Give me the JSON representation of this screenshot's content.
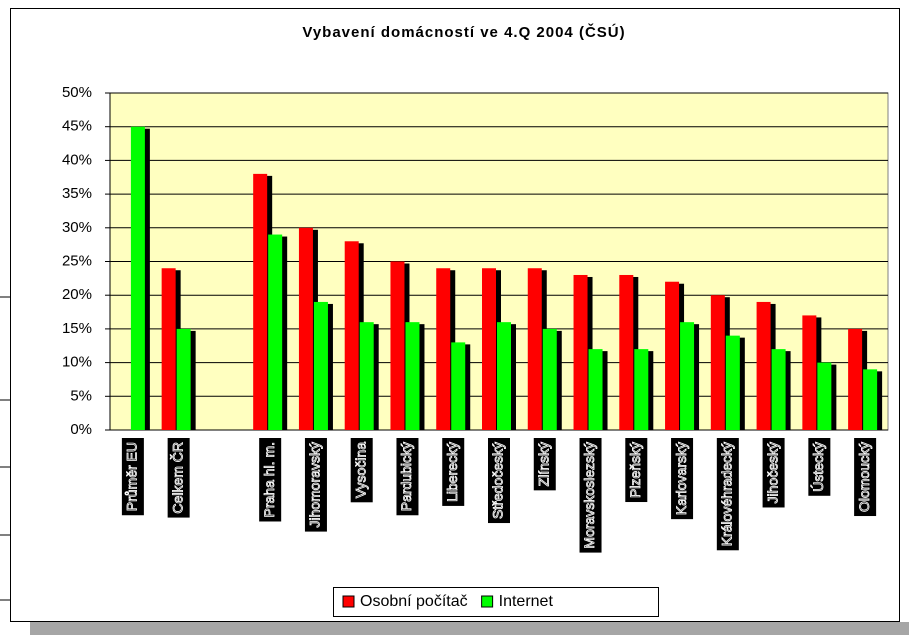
{
  "chart_data": {
    "type": "bar",
    "title": "Vybavení domácností ve 4.Q 2004 (ČSÚ)",
    "categories": [
      "Průměr EU",
      "Celkem ČR",
      null,
      "Praha hl. m.",
      "Jihomoravský",
      "Vysočina",
      "Pardubický",
      "Liberecký",
      "Středočeský",
      "Zlínský",
      "Moravskoslezský",
      "Plzeňský",
      "Karlovarský",
      "Královéhradecký",
      "Jihočeský",
      "Ústecký",
      "Olomoucký"
    ],
    "series": [
      {
        "name": "Osobní počítač",
        "color": "#ff0000",
        "values": [
          null,
          24,
          null,
          38,
          30,
          28,
          25,
          24,
          24,
          24,
          23,
          23,
          22,
          20,
          19,
          17,
          15
        ]
      },
      {
        "name": "Internet",
        "color": "#00ff00",
        "values": [
          45,
          15,
          null,
          29,
          19,
          16,
          16,
          13,
          16,
          15,
          12,
          12,
          16,
          14,
          12,
          10,
          9
        ]
      }
    ],
    "ylim": [
      0,
      50
    ],
    "yticks": [
      {
        "value": 0,
        "label": "0%"
      },
      {
        "value": 5,
        "label": "5%"
      },
      {
        "value": 10,
        "label": "10%"
      },
      {
        "value": 15,
        "label": "15%"
      },
      {
        "value": 20,
        "label": "20%"
      },
      {
        "value": 25,
        "label": "25%"
      },
      {
        "value": 30,
        "label": "30%"
      },
      {
        "value": 35,
        "label": "35%"
      },
      {
        "value": 40,
        "label": "40%"
      },
      {
        "value": 45,
        "label": "45%"
      },
      {
        "value": 50,
        "label": "50%"
      }
    ],
    "grid": true,
    "legend": "bottom"
  }
}
